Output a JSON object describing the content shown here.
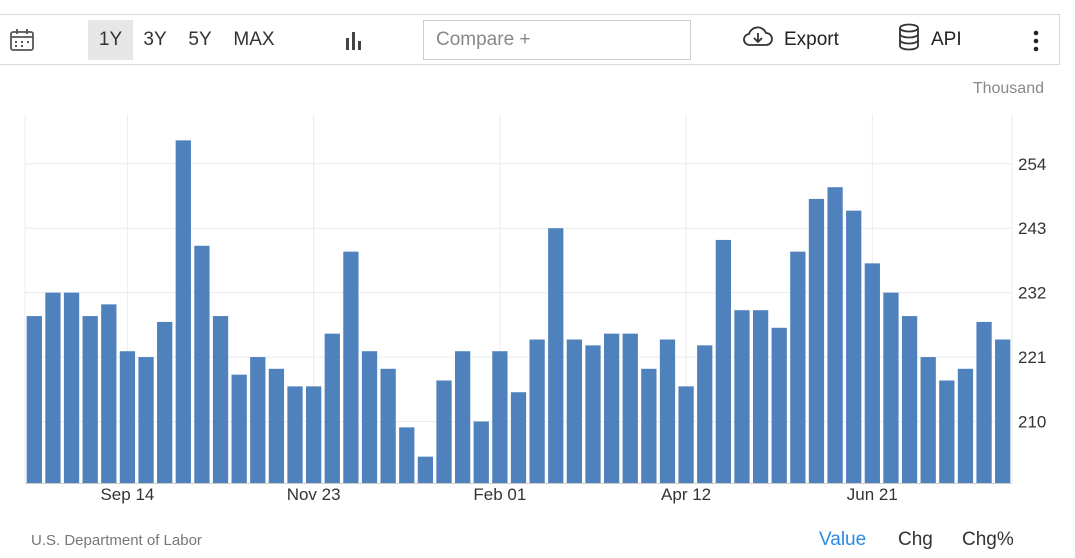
{
  "toolbar": {
    "range_options": [
      "1Y",
      "3Y",
      "5Y",
      "MAX"
    ],
    "active_range": "1Y",
    "compare_placeholder": "Compare +",
    "export_label": "Export",
    "api_label": "API"
  },
  "icons": {
    "calendar": "calendar-icon",
    "chart_type": "bar-chart-icon",
    "export": "cloud-download-icon",
    "api": "database-icon",
    "more": "more-vertical-icon"
  },
  "unit_label": "Thousand",
  "source": "U.S. Department of Labor",
  "value_tabs": [
    "Value",
    "Chg",
    "Chg%"
  ],
  "active_value_tab": "Value",
  "colors": {
    "bar": "#4f81bd",
    "active_tab": "#2b8ae6"
  },
  "chart_data": {
    "type": "bar",
    "x_tick_labels": [
      "Sep 14",
      "Nov 23",
      "Feb 01",
      "Apr 12",
      "Jun 21"
    ],
    "x_tick_positions": [
      5,
      15,
      25,
      35,
      45
    ],
    "y_ticks": [
      210,
      221,
      232,
      243,
      254
    ],
    "ylim": [
      199.5,
      262.5
    ],
    "y_axis_position": "right",
    "grid": true,
    "series": [
      {
        "values": [
          228,
          232,
          232,
          228,
          230,
          222,
          221,
          227,
          258,
          240,
          228,
          218,
          221,
          219,
          216,
          216,
          225,
          239,
          222,
          219,
          209,
          204,
          217,
          222,
          210,
          222,
          215,
          224,
          243,
          224,
          223,
          225,
          225,
          219,
          224,
          216,
          223,
          241,
          229,
          229,
          226,
          239,
          248,
          250,
          246,
          237,
          232,
          228,
          221,
          217,
          219,
          227,
          224
        ]
      }
    ]
  }
}
